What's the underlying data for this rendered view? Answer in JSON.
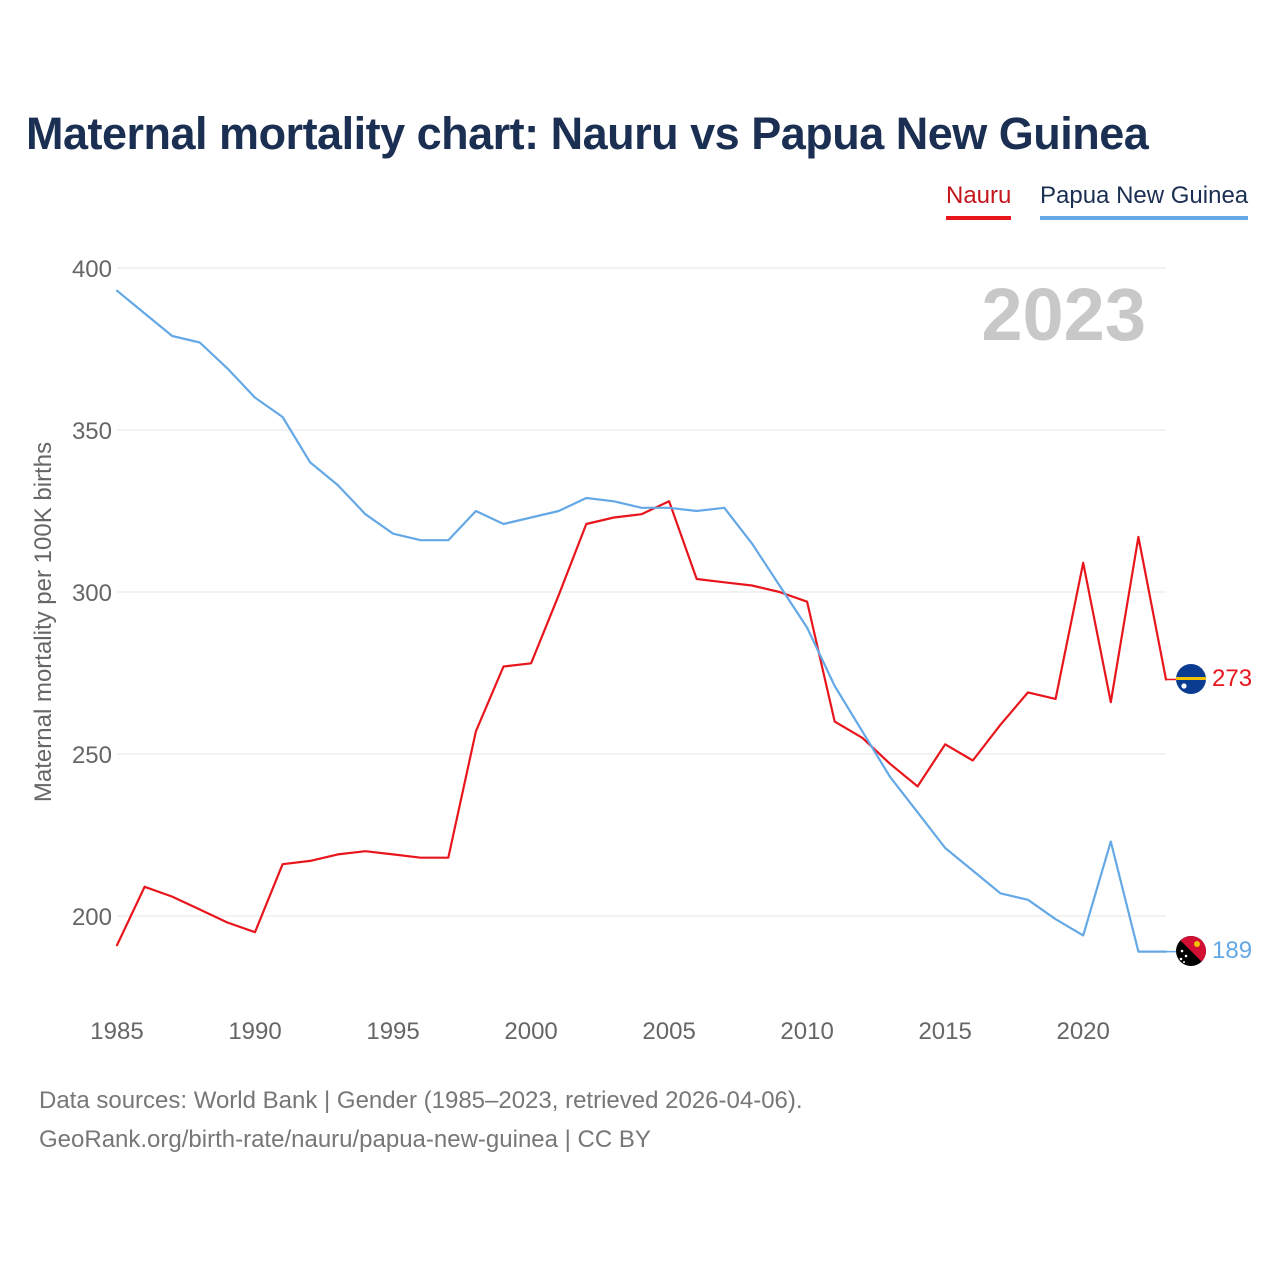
{
  "title": "Maternal mortality chart: Nauru vs Papua New Guinea",
  "legend": {
    "nauru": "Nauru",
    "png": "Papua New Guinea"
  },
  "year_watermark": "2023",
  "footer": {
    "line1": "Data sources: World Bank | Gender (1985–2023, retrieved 2026-04-06).",
    "line2": "GeoRank.org/birth-rate/nauru/papua-new-guinea | CC BY"
  },
  "colors": {
    "nauru": "#e8161c",
    "png": "#64a8e6",
    "title": "#1b2f52"
  },
  "chart_data": {
    "type": "line",
    "title": "Maternal mortality chart: Nauru vs Papua New Guinea",
    "ylabel": "Maternal mortality per 100K births",
    "xlabel": "",
    "xlim": [
      1985,
      2023
    ],
    "ylim": [
      180,
      400
    ],
    "x_ticks": [
      1985,
      1990,
      1995,
      2000,
      2005,
      2010,
      2015,
      2020
    ],
    "y_ticks": [
      200,
      250,
      300,
      350,
      400
    ],
    "grid": true,
    "legend_position": "top-right",
    "x": [
      1985,
      1986,
      1987,
      1988,
      1989,
      1990,
      1991,
      1992,
      1993,
      1994,
      1995,
      1996,
      1997,
      1998,
      1999,
      2000,
      2001,
      2002,
      2003,
      2004,
      2005,
      2006,
      2007,
      2008,
      2009,
      2010,
      2011,
      2012,
      2013,
      2014,
      2015,
      2016,
      2017,
      2018,
      2019,
      2020,
      2021,
      2022,
      2023
    ],
    "series": [
      {
        "name": "Nauru",
        "color": "#e8161c",
        "end_label": "273",
        "values": [
          191,
          209,
          206,
          202,
          198,
          195,
          216,
          217,
          219,
          220,
          219,
          218,
          218,
          257,
          277,
          278,
          299,
          321,
          323,
          324,
          328,
          304,
          303,
          302,
          300,
          297,
          260,
          255,
          247,
          240,
          253,
          248,
          259,
          269,
          267,
          309,
          266,
          317,
          273
        ]
      },
      {
        "name": "Papua New Guinea",
        "color": "#64a8e6",
        "end_label": "189",
        "values": [
          393,
          386,
          379,
          377,
          369,
          360,
          354,
          340,
          333,
          324,
          318,
          316,
          316,
          325,
          321,
          323,
          325,
          329,
          328,
          326,
          326,
          325,
          326,
          315,
          302,
          289,
          271,
          257,
          243,
          232,
          221,
          214,
          207,
          205,
          199,
          194,
          223,
          189,
          189
        ]
      }
    ]
  }
}
